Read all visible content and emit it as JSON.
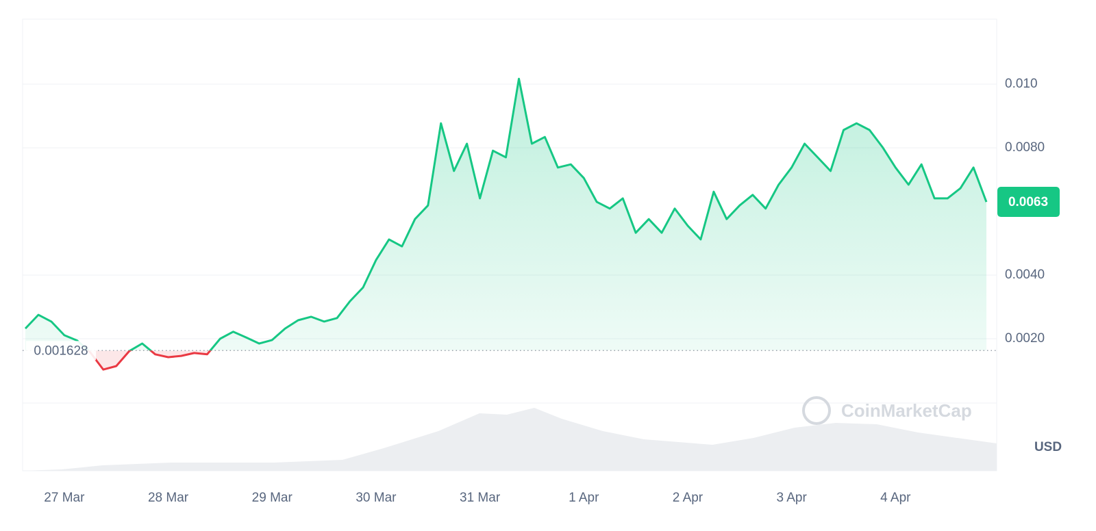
{
  "chart_data": {
    "type": "line",
    "categories": [
      null,
      null,
      null,
      "27 Mar",
      null,
      null,
      null,
      null,
      null,
      null,
      null,
      "28 Mar",
      null,
      null,
      null,
      null,
      null,
      null,
      null,
      "29 Mar",
      null,
      null,
      null,
      null,
      null,
      null,
      null,
      "30 Mar",
      null,
      null,
      null,
      null,
      null,
      null,
      null,
      "31 Mar",
      null,
      null,
      null,
      null,
      null,
      null,
      null,
      "1 Apr",
      null,
      null,
      null,
      null,
      null,
      null,
      null,
      "2 Apr",
      null,
      null,
      null,
      null,
      null,
      null,
      null,
      "3 Apr",
      null,
      null,
      null,
      null,
      null,
      null,
      null,
      "4 Apr",
      null,
      null,
      null,
      null,
      null,
      null,
      null
    ],
    "values": [
      0.00232,
      0.00275,
      0.00254,
      0.00211,
      0.00194,
      0.00157,
      0.00103,
      0.00114,
      0.00161,
      0.00185,
      0.00151,
      0.00142,
      0.00146,
      0.00155,
      0.00151,
      0.002,
      0.00222,
      0.00204,
      0.00185,
      0.00196,
      0.00232,
      0.00258,
      0.00269,
      0.00254,
      0.00265,
      0.00318,
      0.00361,
      0.00447,
      0.00512,
      0.0049,
      0.00576,
      0.00619,
      0.00877,
      0.00727,
      0.00813,
      0.00641,
      0.00791,
      0.0077,
      0.01017,
      0.00813,
      0.00834,
      0.00738,
      0.00748,
      0.00705,
      0.0063,
      0.00609,
      0.00641,
      0.00533,
      0.00576,
      0.00533,
      0.00609,
      0.00555,
      0.00512,
      0.00662,
      0.00576,
      0.00619,
      0.00652,
      0.00609,
      0.00684,
      0.00738,
      0.00813,
      0.0077,
      0.00727,
      0.00856,
      0.00877,
      0.00856,
      0.00802,
      0.00738,
      0.00684,
      0.00748,
      0.00641,
      0.00641,
      0.00673,
      0.00738,
      0.0063
    ],
    "color": "#16c784",
    "below_color": "#ea3943",
    "ylim": [
      0,
      0.012
    ],
    "yticks": [
      {
        "value": 0.002,
        "label": "0.0020"
      },
      {
        "value": 0.004,
        "label": "0.0040"
      },
      {
        "value": 0.008,
        "label": "0.0080"
      },
      {
        "value": 0.01,
        "label": "0.010"
      }
    ],
    "grid": true,
    "reference_value": 0.001628,
    "last_value": 0.0063,
    "currency": "USD",
    "watermark": "CoinMarketCap"
  }
}
